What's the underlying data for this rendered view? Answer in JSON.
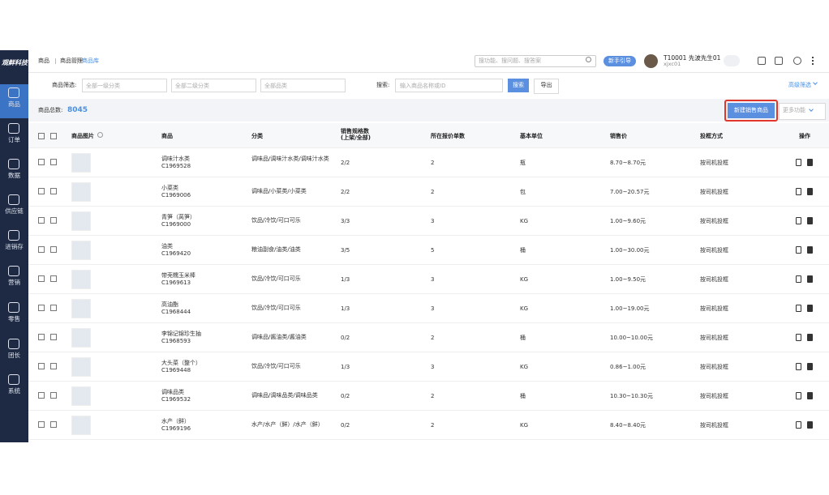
{
  "brand": "观鲜科技",
  "sidebar": [
    "商品",
    "订单",
    "数据",
    "供应链",
    "进销存",
    "营销",
    "零售",
    "团长",
    "系统"
  ],
  "breadcrumb": [
    "商品",
    "商品管理",
    "商品库"
  ],
  "topbar": {
    "search_placeholder": "搜功能、搜问题、搜答案",
    "guide_button": "新手引导",
    "user_name": "T10001 先波先生01",
    "user_id": "xjxc01"
  },
  "filters": {
    "label": "商品筛选:",
    "selects": [
      "全部一级分类",
      "全部二级分类",
      "全部品类"
    ],
    "search_label": "搜索:",
    "search_placeholder": "输入商品名称或ID",
    "search_button": "搜索",
    "export_button": "导出",
    "advanced": "高级筛选"
  },
  "summary": {
    "label": "商品总数:",
    "total": 8045,
    "create_button": "新建销售商品",
    "more_button": "更多功能"
  },
  "table": {
    "columns": [
      "商品图片",
      "商品",
      "分类",
      "销售规格数\n(上架/全部)",
      "所在报价单数",
      "基本单位",
      "销售价",
      "投框方式",
      "操作"
    ],
    "rows": [
      [
        "调味汁水类",
        "C1969528",
        "调味品/调味汁水类/调味汁水类",
        "2/2",
        2,
        "瓶",
        "8.70~8.70元",
        "按司机投框"
      ],
      [
        "小菜类",
        "C1969006",
        "调味品/小菜类/小菜类",
        "2/2",
        2,
        "包",
        "7.00~20.57元",
        "按司机投框"
      ],
      [
        "青笋（莴笋）",
        "C1969000",
        "饮品/冷饮/可口可乐",
        "3/3",
        3,
        "KG",
        "1.00~9.60元",
        "按司机投框"
      ],
      [
        "油类",
        "C1969420",
        "粮油副食/油类/油类",
        "3/5",
        5,
        "桶",
        "1.00~30.00元",
        "按司机投框"
      ],
      [
        "带壳糯玉米棒",
        "C1969613",
        "饮品/冷饮/可口可乐",
        "1/3",
        3,
        "KG",
        "1.00~9.50元",
        "按司机投框"
      ],
      [
        "高油酯",
        "C1968444",
        "饮品/冷饮/可口可乐",
        "1/3",
        3,
        "KG",
        "1.00~19.00元",
        "按司机投框"
      ],
      [
        "李锦记锦珍生抽",
        "C1968593",
        "调味品/酱油类/酱油类",
        "0/2",
        2,
        "桶",
        "10.00~10.00元",
        "按司机投框"
      ],
      [
        "大头菜（整个）",
        "C1969448",
        "饮品/冷饮/可口可乐",
        "1/3",
        3,
        "KG",
        "0.86~1.00元",
        "按司机投框"
      ],
      [
        "调味品类",
        "C1969532",
        "调味品/调味品类/调味品类",
        "0/2",
        2,
        "桶",
        "10.30~10.30元",
        "按司机投框"
      ],
      [
        "水产（鲜）",
        "C1969196",
        "水产/水产（鲜）/水产（鲜）",
        "0/2",
        2,
        "KG",
        "8.40~8.40元",
        "按司机投框"
      ]
    ]
  }
}
